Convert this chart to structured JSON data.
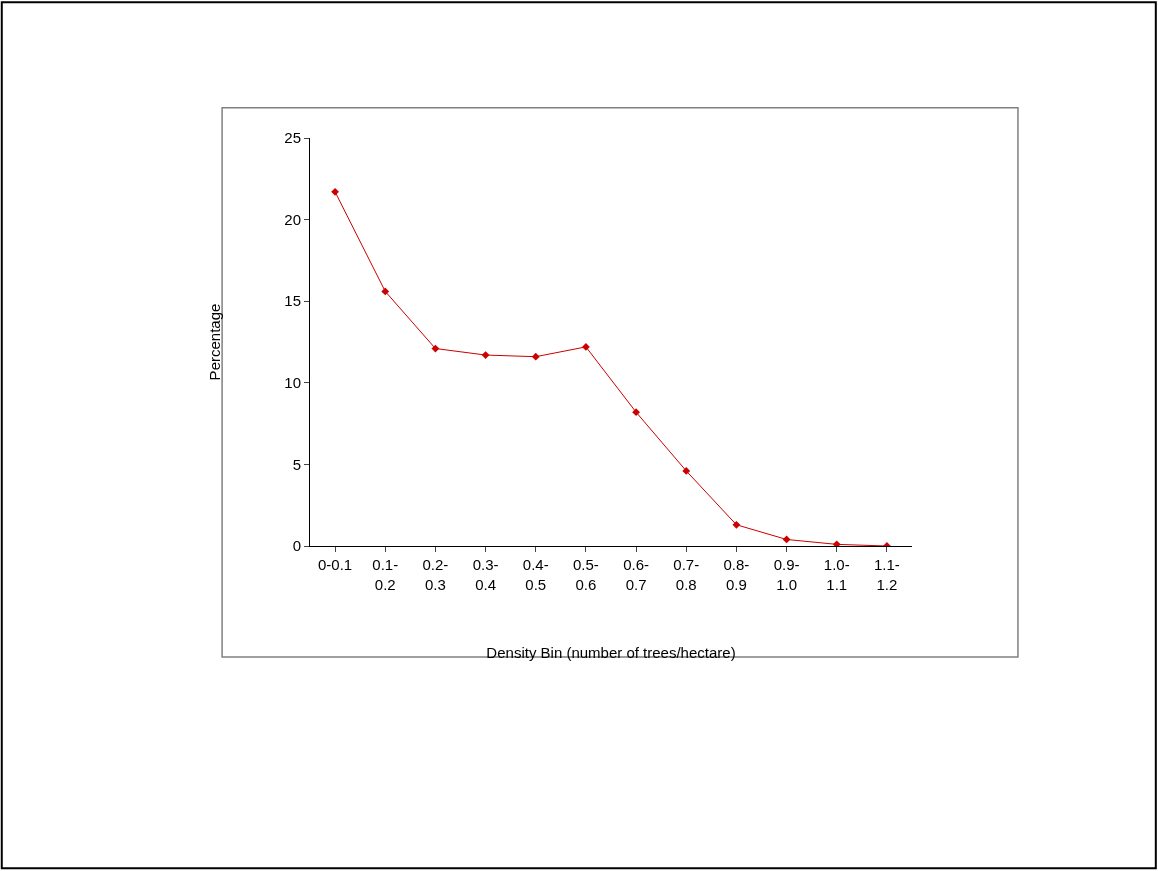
{
  "chart_data": {
    "type": "line",
    "xlabel": "Density Bin (number of trees/hectare)",
    "ylabel": "Percentage",
    "categories": [
      "0-0.1",
      "0.1-\n0.2",
      "0.2-\n0.3",
      "0.3-\n0.4",
      "0.4-\n0.5",
      "0.5-\n0.6",
      "0.6-\n0.7",
      "0.7-\n0.8",
      "0.8-\n0.9",
      "0.9-\n1.0",
      "1.0-\n1.1",
      "1.1-\n1.2"
    ],
    "series": [
      {
        "color": "#cc0000",
        "values": [
          21.7,
          15.6,
          12.1,
          11.7,
          11.6,
          12.2,
          8.2,
          4.6,
          1.3,
          0.4,
          0.1,
          0.0
        ]
      }
    ],
    "ylim": [
      0,
      25
    ],
    "yticks": [
      0,
      5,
      10,
      15,
      20,
      25
    ],
    "marker": "diamond",
    "line_style": "solid"
  }
}
